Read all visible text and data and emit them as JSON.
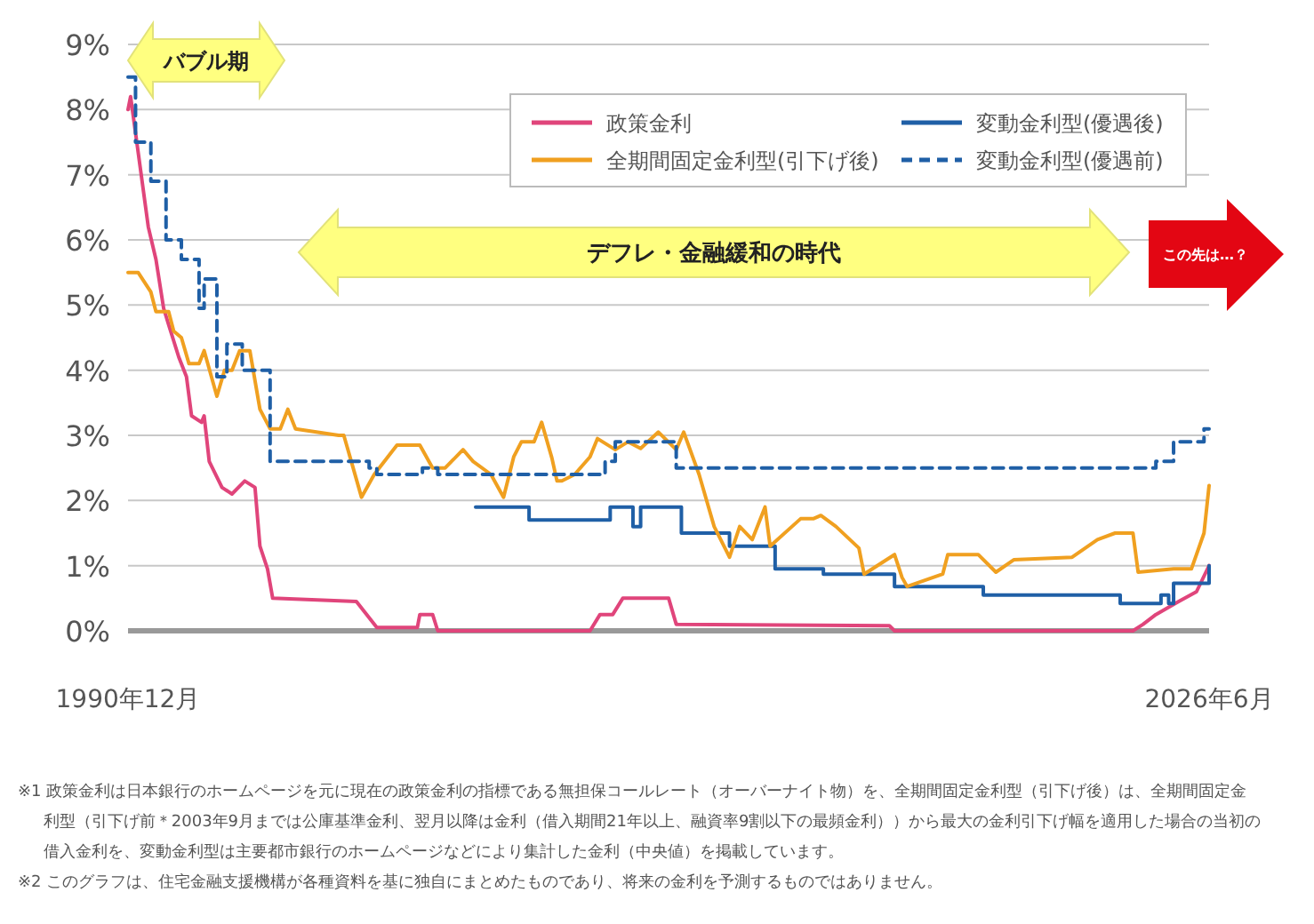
{
  "chart_data": {
    "type": "line",
    "xlim": [
      "1990-12",
      "2026-06"
    ],
    "xticks": [
      {
        "value": "1990-12",
        "label": "1990年12月"
      },
      {
        "value": "2026-06",
        "label": "2026年6月"
      }
    ],
    "ylim": [
      0,
      9
    ],
    "yticks": [
      {
        "value": 0,
        "label": "0%"
      },
      {
        "value": 1,
        "label": "1%"
      },
      {
        "value": 2,
        "label": "2%"
      },
      {
        "value": 3,
        "label": "3%"
      },
      {
        "value": 4,
        "label": "4%"
      },
      {
        "value": 5,
        "label": "5%"
      },
      {
        "value": 6,
        "label": "6%"
      },
      {
        "value": 7,
        "label": "7%"
      },
      {
        "value": 8,
        "label": "8%"
      },
      {
        "value": 9,
        "label": "9%"
      }
    ],
    "grid": "y",
    "legend": "top right",
    "series": [
      {
        "name": "政策金利",
        "color": "#e0457b",
        "x": [
          "1990-12",
          "1991-01",
          "1991-08",
          "1991-11",
          "1992-02",
          "1992-04",
          "1992-08",
          "1992-11",
          "1993-01",
          "1993-05",
          "1993-06",
          "1993-08",
          "1994-01",
          "1994-05",
          "1994-10",
          "1995-02",
          "1995-04",
          "1995-07",
          "1995-09",
          "1998-06",
          "1999-02",
          "2000-06",
          "2000-07",
          "2000-12",
          "2001-02",
          "2006-02",
          "2006-06",
          "2006-11",
          "2007-03",
          "2008-09",
          "2008-12",
          "2015-12",
          "2016-02",
          "2023-12",
          "2024-04",
          "2024-09",
          "2025-06",
          "2026-01",
          "2026-06"
        ],
        "values": [
          8.0,
          8.2,
          6.2,
          5.7,
          4.95,
          4.7,
          4.2,
          3.9,
          3.3,
          3.2,
          3.3,
          2.6,
          2.2,
          2.1,
          2.3,
          2.2,
          1.3,
          0.95,
          0.5,
          0.45,
          0.05,
          0.05,
          0.25,
          0.25,
          0.0,
          0.0,
          0.25,
          0.25,
          0.5,
          0.5,
          0.1,
          0.08,
          0.0,
          0.0,
          0.1,
          0.25,
          0.45,
          0.6,
          1.0
        ]
      },
      {
        "name": "変動金利型(優遇後)",
        "type": "step",
        "color": "#1f5fa6",
        "x": [
          "2002-05",
          "2004-02",
          "2006-10",
          "2007-07",
          "2007-10",
          "2009-02",
          "2010-09",
          "2012-03",
          "2013-10",
          "2016-02",
          "2019-01",
          "2023-07",
          "2024-11",
          "2025-02",
          "2025-04",
          "2026-01",
          "2026-06"
        ],
        "values": [
          1.9,
          1.7,
          1.9,
          1.6,
          1.9,
          1.5,
          1.3,
          0.95,
          0.87,
          0.68,
          0.55,
          0.42,
          0.55,
          0.42,
          0.73,
          0.73,
          1.0
        ]
      },
      {
        "name": "全期間固定金利型(引下げ後)",
        "color": "#f0a020",
        "x": [
          "1990-12",
          "1991-04",
          "1991-09",
          "1991-11",
          "1992-04",
          "1992-06",
          "1992-09",
          "1992-12",
          "1993-04",
          "1993-06",
          "1993-11",
          "1994-02",
          "1994-05",
          "1994-08",
          "1994-12",
          "1995-04",
          "1995-08",
          "1995-12",
          "1996-03",
          "1996-06",
          "1997-11",
          "1998-01",
          "1998-04",
          "1998-08",
          "1999-01",
          "1999-06",
          "1999-10",
          "2000-07",
          "2000-12",
          "2001-05",
          "2001-12",
          "2002-04",
          "2002-11",
          "2003-04",
          "2003-08",
          "2003-11",
          "2004-04",
          "2004-07",
          "2004-11",
          "2005-01",
          "2005-03",
          "2005-08",
          "2006-02",
          "2006-05",
          "2006-12",
          "2007-05",
          "2007-10",
          "2008-05",
          "2008-12",
          "2009-03",
          "2009-09",
          "2010-03",
          "2010-09",
          "2011-01",
          "2011-06",
          "2011-11",
          "2012-01",
          "2013-01",
          "2013-06",
          "2013-09",
          "2014-03",
          "2014-12",
          "2015-02",
          "2016-02",
          "2016-05",
          "2016-07",
          "2017-09",
          "2017-11",
          "2018-11",
          "2019-06",
          "2020-01",
          "2021-12",
          "2022-10",
          "2023-05",
          "2023-12",
          "2024-02",
          "2025-04",
          "2025-11",
          "2026-04",
          "2026-06"
        ],
        "values": [
          5.5,
          5.5,
          5.2,
          4.9,
          4.9,
          4.6,
          4.5,
          4.1,
          4.1,
          4.3,
          3.6,
          4.0,
          4.0,
          4.3,
          4.3,
          3.4,
          3.1,
          3.1,
          3.4,
          3.1,
          3.0,
          3.0,
          2.6,
          2.05,
          2.4,
          2.65,
          2.85,
          2.85,
          2.5,
          2.5,
          2.78,
          2.6,
          2.4,
          2.05,
          2.67,
          2.9,
          2.9,
          3.2,
          2.65,
          2.3,
          2.3,
          2.4,
          2.67,
          2.95,
          2.78,
          2.9,
          2.8,
          3.05,
          2.78,
          3.05,
          2.4,
          1.6,
          1.13,
          1.6,
          1.4,
          1.9,
          1.3,
          1.72,
          1.72,
          1.77,
          1.6,
          1.27,
          0.87,
          1.17,
          0.82,
          0.68,
          0.87,
          1.17,
          1.17,
          0.9,
          1.09,
          1.13,
          1.4,
          1.5,
          1.5,
          0.9,
          0.95,
          0.95,
          1.5,
          2.23
        ]
      },
      {
        "name": "変動金利型(優遇前)",
        "type": "step",
        "color": "#1f5fa6",
        "line_style": "dashed",
        "x": [
          "1990-12",
          "1991-03",
          "1991-09",
          "1992-03",
          "1992-09",
          "1993-04",
          "1993-06",
          "1993-11",
          "1994-03",
          "1994-09",
          "1995-08",
          "1998-11",
          "1999-02",
          "2000-08",
          "2001-02",
          "2006-08",
          "2006-12",
          "2008-12",
          "2024-09",
          "2025-04",
          "2026-04",
          "2026-06"
        ],
        "values": [
          8.5,
          7.5,
          6.9,
          6.0,
          5.7,
          4.95,
          5.4,
          3.9,
          4.4,
          4.0,
          2.6,
          2.5,
          2.4,
          2.5,
          2.4,
          2.6,
          2.9,
          2.5,
          2.6,
          2.9,
          3.1,
          3.1
        ]
      }
    ],
    "annotations": [
      "バブル期",
      "デフレ・金融緩和の時代",
      "この先は…？",
      "※1 政策金利は日本銀行のホームページを元に現在の政策金利の指標である無担保コールレート（オーバーナイト物）を、全期間固定金利型（引下げ後）は、全期間固定金利型（引下げ前＊2003年9月までは公庫基準金利、翌月以降は金利（借入期間21年以上、融資率9割以下の最頻金利））から最大の金利引下げ幅を適用した場合の当初の借入金利を、変動金利型は主要都市銀行のホームページなどにより集計した金利（中央値）を掲載しています。",
      "※2 このグラフは、住宅金融支援機構が各種資料を基に独自にまとめたものであり、将来の金利を予測するものではありません。"
    ]
  }
}
